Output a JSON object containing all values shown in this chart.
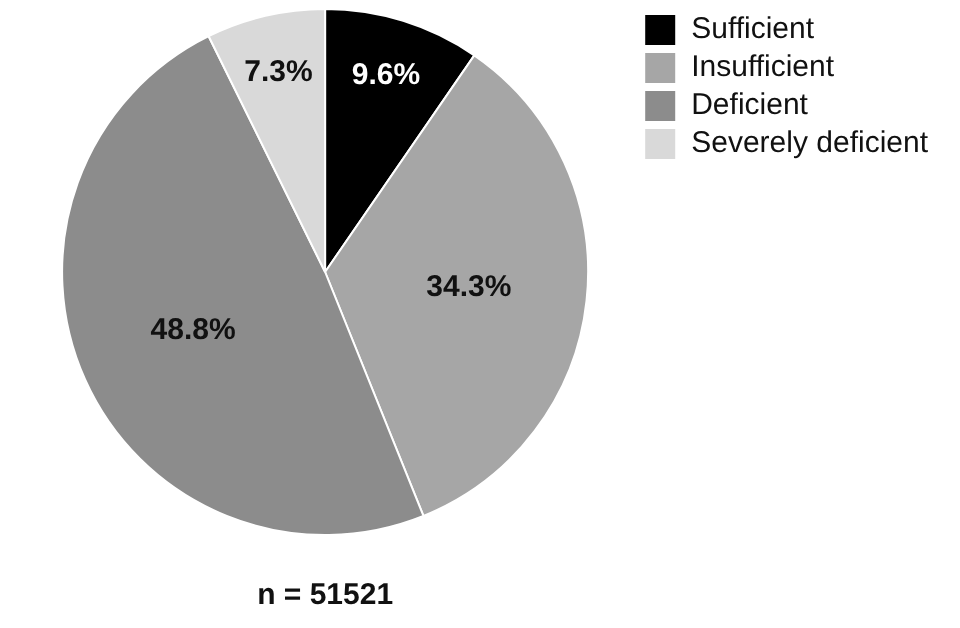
{
  "chart_data": {
    "type": "pie",
    "categories": [
      "Sufficient",
      "Insufficient",
      "Deficient",
      "Severely deficient"
    ],
    "values": [
      9.6,
      34.3,
      48.8,
      7.3
    ],
    "value_labels": [
      "9.6%",
      "34.3%",
      "48.8%",
      "7.3%"
    ],
    "colors": [
      "#000000",
      "#a6a6a6",
      "#8c8c8c",
      "#d9d9d9"
    ],
    "legend": "top right",
    "annotations": [
      "n = 51521"
    ]
  }
}
